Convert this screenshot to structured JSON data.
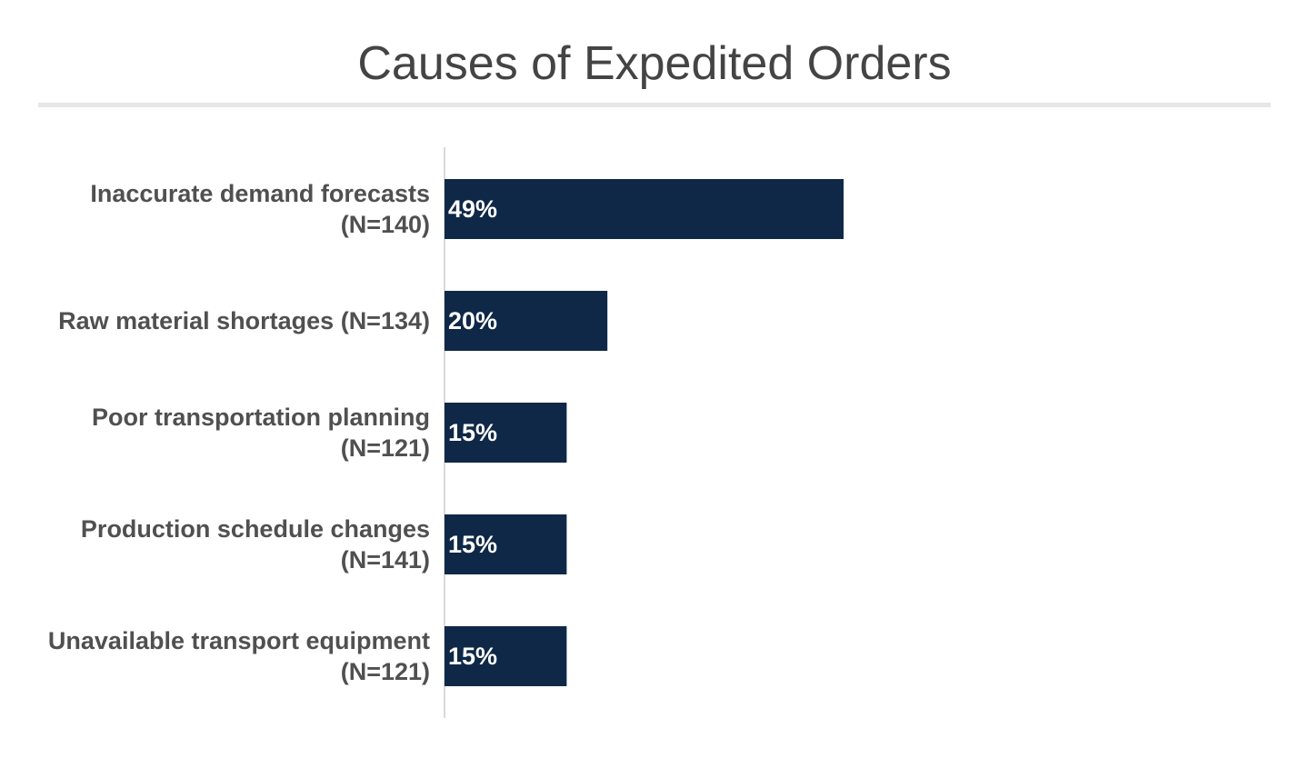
{
  "title": "Causes of Expedited Orders",
  "colors": {
    "bar": "#0f2847",
    "axis": "#d9d9d9",
    "label": "#505050",
    "value_label": "#ffffff"
  },
  "chart_data": {
    "type": "bar",
    "orientation": "horizontal",
    "title": "Causes of Expedited Orders",
    "xlabel": "",
    "ylabel": "",
    "xlim": [
      0,
      100
    ],
    "grid": false,
    "legend": "none",
    "categories": [
      [
        "Inaccurate demand forecasts",
        "(N=140)"
      ],
      [
        "Raw material shortages (N=134)"
      ],
      [
        "Poor transportation planning",
        "(N=121)"
      ],
      [
        "Production schedule changes",
        "(N=141)"
      ],
      [
        "Unavailable transport equipment",
        "(N=121)"
      ]
    ],
    "values": [
      49,
      20,
      15,
      15,
      15
    ],
    "value_labels": [
      "49%",
      "20%",
      "15%",
      "15%",
      "15%"
    ]
  }
}
